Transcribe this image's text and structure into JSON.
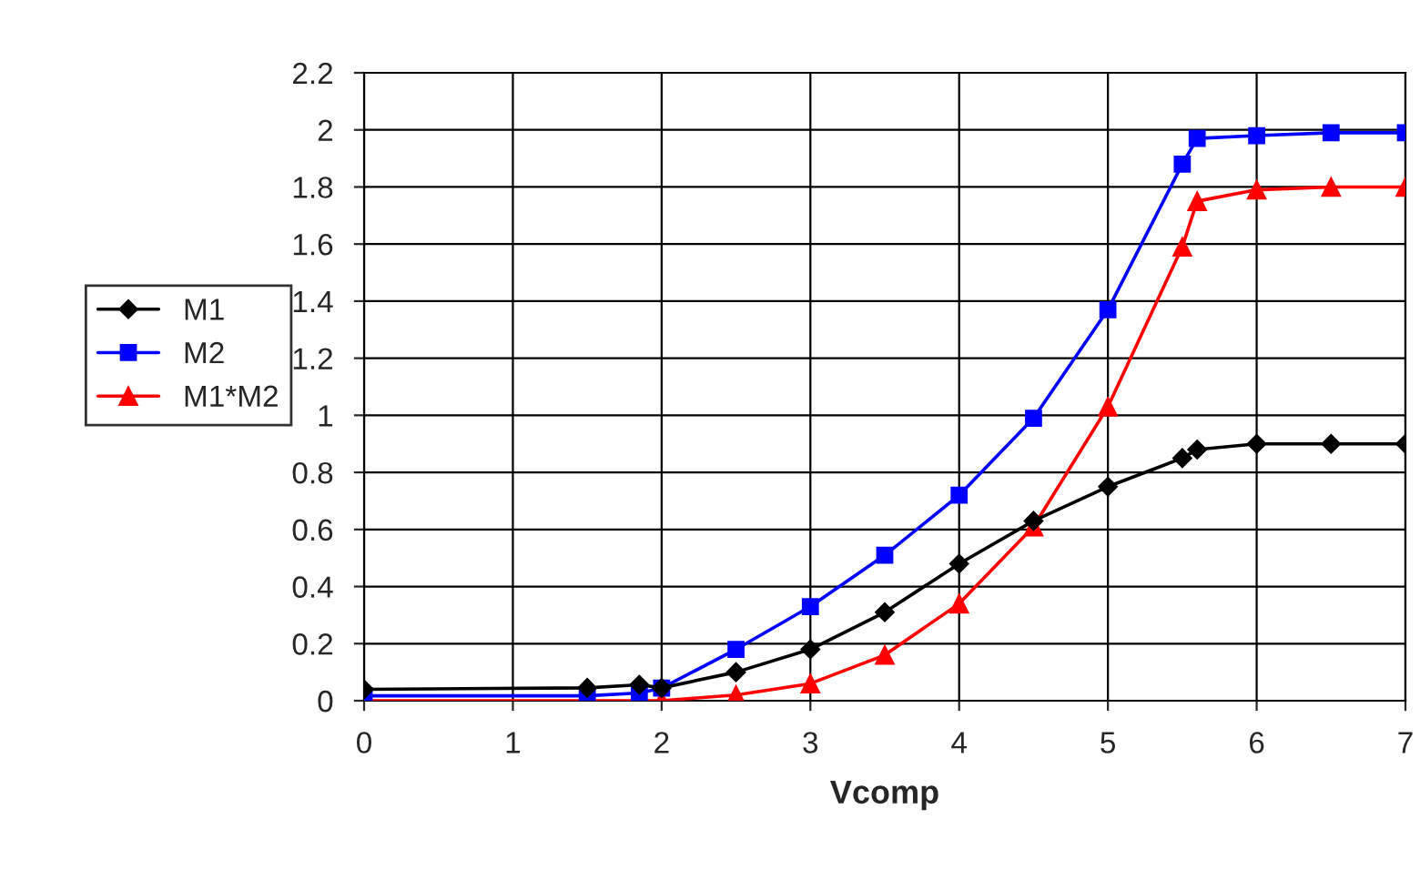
{
  "chart_data": {
    "type": "line",
    "xlabel": "Vcomp",
    "x": [
      0,
      1.5,
      1.85,
      2,
      2.5,
      3,
      3.5,
      4,
      4.5,
      5,
      5.5,
      5.6,
      6,
      6.5,
      7
    ],
    "series": [
      {
        "name": "M1",
        "color": "#000000",
        "marker": "diamond",
        "values": [
          0.04,
          0.045,
          0.056,
          0.045,
          0.1,
          0.18,
          0.31,
          0.48,
          0.63,
          0.75,
          0.85,
          0.88,
          0.9,
          0.9,
          0.9
        ]
      },
      {
        "name": "M2",
        "color": "#0000ff",
        "marker": "square",
        "values": [
          0.017,
          0.017,
          0.027,
          0.044,
          0.18,
          0.33,
          0.51,
          0.72,
          0.99,
          1.37,
          1.88,
          1.97,
          1.98,
          1.99,
          1.99
        ]
      },
      {
        "name": "M1*M2",
        "color": "#ff0000",
        "marker": "triangle",
        "values": [
          0,
          0,
          0,
          0,
          0.02,
          0.06,
          0.16,
          0.34,
          0.61,
          1.03,
          1.59,
          1.75,
          1.79,
          1.8,
          1.8
        ]
      }
    ],
    "xlim": [
      0,
      7
    ],
    "xticks": [
      0,
      1,
      2,
      3,
      4,
      5,
      6,
      7
    ],
    "ylim": [
      0,
      2.2
    ],
    "yticks": [
      0,
      {
        "value": 0.2,
        "label": "0.2"
      },
      {
        "value": 0.4,
        "label": "0.4"
      },
      {
        "value": 0.6,
        "label": "0.6"
      },
      {
        "value": 0.8,
        "label": "0.8"
      },
      1,
      {
        "value": 1.2,
        "label": "1.2"
      },
      {
        "value": 1.4,
        "label": "1.4"
      },
      {
        "value": 1.6,
        "label": "1.6"
      },
      {
        "value": 1.8,
        "label": "1.8"
      },
      2,
      {
        "value": 2.2,
        "label": "2.2"
      }
    ],
    "grid": true,
    "legend": "left",
    "line_style": "solid"
  }
}
